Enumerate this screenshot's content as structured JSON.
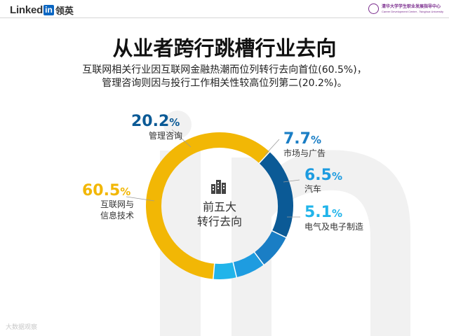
{
  "header": {
    "logo_text": "Linked",
    "logo_in": "in",
    "logo_cn": "领英",
    "partner_name": "清华大学学生职业发展指导中心",
    "partner_en": "Career Development Center , Tsinghua University"
  },
  "title": "从业者跨行跳槽行业去向",
  "subtitle": [
    "互联网相关行业因互联网金融热潮而位列转行去向首位(60.5%)，",
    "管理咨询则因与投行工作相关性较高位列第二(20.2%)。"
  ],
  "chart_data": {
    "type": "pie",
    "donut": true,
    "center_label": [
      "前五大",
      "转行去向"
    ],
    "center_icon": "buildings-icon",
    "unit": "%",
    "slices": [
      {
        "label": "互联网与信息技术",
        "label_lines": [
          "互联网与",
          "信息技术"
        ],
        "value": 60.5,
        "number": "60.5",
        "color": "#f2b705"
      },
      {
        "label": "管理咨询",
        "label_lines": [
          "管理咨询"
        ],
        "value": 20.2,
        "number": "20.2",
        "color": "#0b5a96"
      },
      {
        "label": "市场与广告",
        "label_lines": [
          "市场与广告"
        ],
        "value": 7.7,
        "number": "7.7",
        "color": "#1a7ec5"
      },
      {
        "label": "汽车",
        "label_lines": [
          "汽车"
        ],
        "value": 6.5,
        "number": "6.5",
        "color": "#1e9ce0"
      },
      {
        "label": "电气及电子制造",
        "label_lines": [
          "电气及电子制造"
        ],
        "value": 5.1,
        "number": "5.1",
        "color": "#21b4ea"
      }
    ]
  },
  "credit": "大数据观察"
}
